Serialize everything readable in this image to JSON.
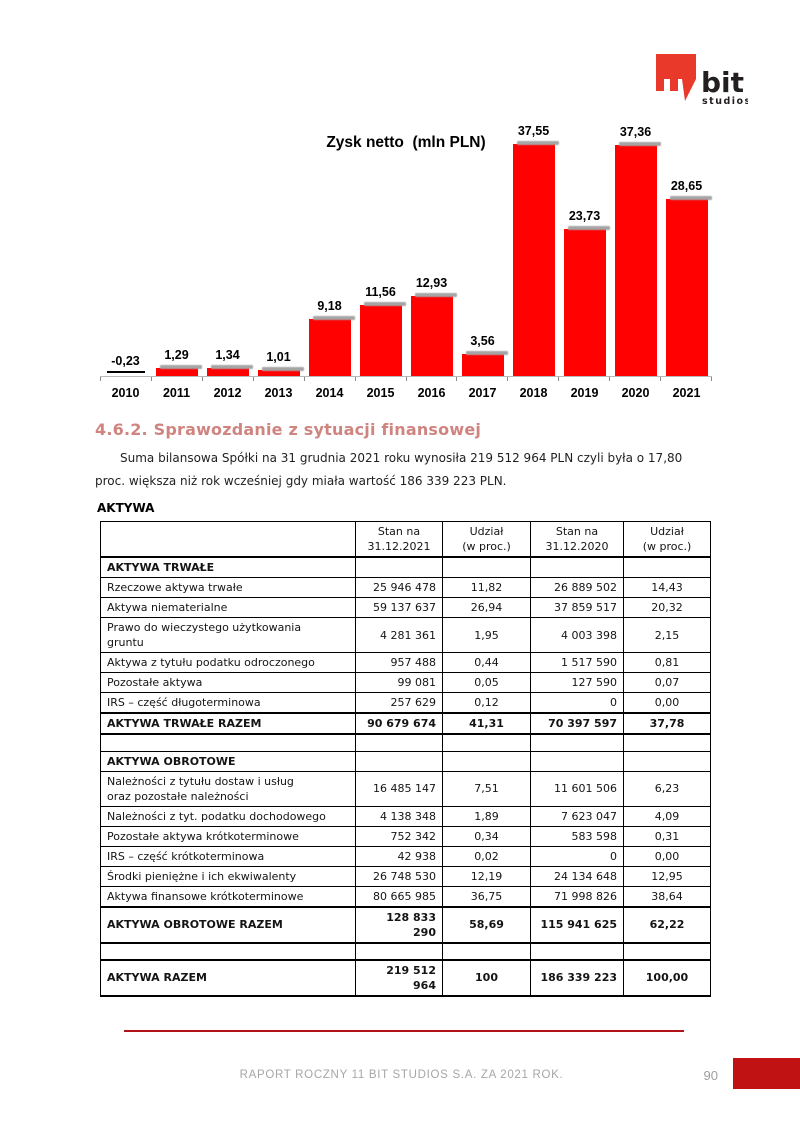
{
  "logo": {
    "brand": "bit",
    "sub": "studios"
  },
  "chart_data": {
    "type": "bar",
    "title": "Zysk netto  (mln PLN)",
    "categories": [
      "2010",
      "2011",
      "2012",
      "2013",
      "2014",
      "2015",
      "2016",
      "2017",
      "2018",
      "2019",
      "2020",
      "2021"
    ],
    "values": [
      -0.23,
      1.29,
      1.34,
      1.01,
      9.18,
      11.56,
      12.93,
      3.56,
      37.55,
      23.73,
      37.36,
      28.65
    ],
    "value_labels": [
      "-0,23",
      "1,29",
      "1,34",
      "1,01",
      "9,18",
      "11,56",
      "12,93",
      "3,56",
      "37,55",
      "23,73",
      "37,36",
      "28,65"
    ],
    "xlabel": "",
    "ylabel": "",
    "ylim": [
      -1,
      40
    ],
    "grid": false,
    "legend": false,
    "bar_color": "#fe0100",
    "shadow_color": "#a5a5a5"
  },
  "section": {
    "heading": "4.6.2. Sprawozdanie z sytuacji finansowej",
    "paragraph": "Suma bilansowa Spółki na 31 grudnia 2021 roku wynosiła 219 512 964 PLN czyli była o 17,80 proc. większa niż rok wcześniej gdy miała wartość 186 339 223 PLN."
  },
  "table": {
    "title": "AKTYWA",
    "columns": [
      {
        "line1": "",
        "line2": ""
      },
      {
        "line1": "Stan na",
        "line2": "31.12.2021"
      },
      {
        "line1": "Udział",
        "line2": "(w proc.)"
      },
      {
        "line1": "Stan na",
        "line2": "31.12.2020"
      },
      {
        "line1": "Udział",
        "line2": "(w proc.)"
      }
    ],
    "rows": [
      {
        "style": "section",
        "label": "AKTYWA TRWAŁE",
        "v2021": "",
        "p2021": "",
        "v2020": "",
        "p2020": ""
      },
      {
        "style": "data",
        "label": "Rzeczowe aktywa trwałe",
        "v2021": "25 946 478",
        "p2021": "11,82",
        "v2020": "26 889 502",
        "p2020": "14,43"
      },
      {
        "style": "data",
        "label": "Aktywa niematerialne",
        "v2021": "59 137 637",
        "p2021": "26,94",
        "v2020": "37 859 517",
        "p2020": "20,32"
      },
      {
        "style": "data",
        "label": "Prawo do wieczystego użytkowania\ngruntu",
        "v2021": "4 281 361",
        "p2021": "1,95",
        "v2020": "4 003 398",
        "p2020": "2,15"
      },
      {
        "style": "data",
        "label": "Aktywa z tytułu podatku odroczonego",
        "v2021": "957 488",
        "p2021": "0,44",
        "v2020": "1 517 590",
        "p2020": "0,81"
      },
      {
        "style": "data",
        "label": "Pozostałe aktywa",
        "v2021": "99 081",
        "p2021": "0,05",
        "v2020": "127 590",
        "p2020": "0,07"
      },
      {
        "style": "data",
        "label": "IRS – część długoterminowa",
        "v2021": "257 629",
        "p2021": "0,12",
        "v2020": "0",
        "p2020": "0,00"
      },
      {
        "style": "total",
        "label": "AKTYWA TRWAŁE RAZEM",
        "v2021": "90 679 674",
        "p2021": "41,31",
        "v2020": "70 397 597",
        "p2020": "37,78"
      },
      {
        "style": "spacer",
        "label": "",
        "v2021": "",
        "p2021": "",
        "v2020": "",
        "p2020": ""
      },
      {
        "style": "section",
        "label": "AKTYWA OBROTOWE",
        "v2021": "",
        "p2021": "",
        "v2020": "",
        "p2020": ""
      },
      {
        "style": "data",
        "label": "Należności z tytułu dostaw i usług\noraz pozostałe należności",
        "v2021": "16 485 147",
        "p2021": "7,51",
        "v2020": "11 601 506",
        "p2020": "6,23"
      },
      {
        "style": "data",
        "label": "Należności z tyt. podatku dochodowego",
        "v2021": "4 138 348",
        "p2021": "1,89",
        "v2020": "7 623 047",
        "p2020": "4,09"
      },
      {
        "style": "data",
        "label": "Pozostałe aktywa krótkoterminowe",
        "v2021": "752 342",
        "p2021": "0,34",
        "v2020": "583 598",
        "p2020": "0,31"
      },
      {
        "style": "data",
        "label": "IRS – część krótkoterminowa",
        "v2021": "42 938",
        "p2021": "0,02",
        "v2020": "0",
        "p2020": "0,00"
      },
      {
        "style": "data",
        "label": "Środki pieniężne i ich ekwiwalenty",
        "v2021": "26 748 530",
        "p2021": "12,19",
        "v2020": "24 134 648",
        "p2020": "12,95"
      },
      {
        "style": "data",
        "label": "Aktywa finansowe krótkoterminowe",
        "v2021": "80 665 985",
        "p2021": "36,75",
        "v2020": "71 998 826",
        "p2020": "38,64"
      },
      {
        "style": "total",
        "label": "AKTYWA OBROTOWE RAZEM",
        "v2021": "128 833 290",
        "p2021": "58,69",
        "v2020": "115 941 625",
        "p2020": "62,22"
      },
      {
        "style": "spacer",
        "label": "",
        "v2021": "",
        "p2021": "",
        "v2020": "",
        "p2020": ""
      },
      {
        "style": "total",
        "label": "AKTYWA RAZEM",
        "v2021": "219 512 964",
        "p2021": "100",
        "v2020": "186 339 223",
        "p2020": "100,00"
      }
    ]
  },
  "footer": {
    "text": "RAPORT ROCZNY 11 BIT STUDIOS S.A. ZA 2021 ROK.",
    "page": "90"
  },
  "colors": {
    "bar_red": "#fe0100",
    "heading_salmon": "#d08480",
    "footer_red": "#b31217",
    "logo_red": "#e8392b"
  }
}
